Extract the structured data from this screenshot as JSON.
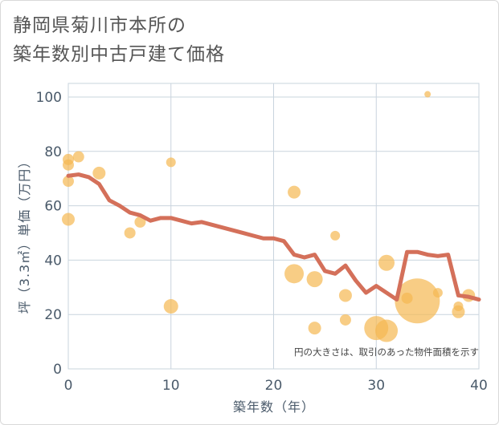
{
  "title": {
    "line1": "静岡県菊川市本所の",
    "line2": "築年数別中古戸建て価格"
  },
  "chart_data": {
    "type": "scatter",
    "xlabel": "築年数（年）",
    "ylabel": "坪（3.3㎡）単価（万円）",
    "xlim": [
      0,
      40
    ],
    "ylim": [
      0,
      105
    ],
    "x_ticks": [
      "0",
      "10",
      "20",
      "30",
      "40"
    ],
    "y_ticks": [
      "0",
      "20",
      "40",
      "60",
      "80",
      "100"
    ],
    "note": "円の大きさは、取引のあった物件面積を示す",
    "colors": {
      "bubble": "#f5b851",
      "line": "#d4705a",
      "grid": "#c9d4de"
    },
    "bubbles": [
      {
        "x": 0,
        "y": 77,
        "r": 7
      },
      {
        "x": 0,
        "y": 75,
        "r": 7
      },
      {
        "x": 0,
        "y": 69,
        "r": 7
      },
      {
        "x": 0,
        "y": 55,
        "r": 8
      },
      {
        "x": 1,
        "y": 78,
        "r": 7
      },
      {
        "x": 3,
        "y": 72,
        "r": 8
      },
      {
        "x": 6,
        "y": 50,
        "r": 7
      },
      {
        "x": 7,
        "y": 54,
        "r": 7
      },
      {
        "x": 10,
        "y": 76,
        "r": 6
      },
      {
        "x": 10,
        "y": 23,
        "r": 9
      },
      {
        "x": 22,
        "y": 65,
        "r": 8
      },
      {
        "x": 22,
        "y": 35,
        "r": 12
      },
      {
        "x": 24,
        "y": 33,
        "r": 10
      },
      {
        "x": 24,
        "y": 15,
        "r": 8
      },
      {
        "x": 26,
        "y": 49,
        "r": 6
      },
      {
        "x": 27,
        "y": 27,
        "r": 8
      },
      {
        "x": 27,
        "y": 18,
        "r": 7
      },
      {
        "x": 30,
        "y": 15,
        "r": 15
      },
      {
        "x": 31,
        "y": 14,
        "r": 14
      },
      {
        "x": 31,
        "y": 39,
        "r": 10
      },
      {
        "x": 33,
        "y": 26,
        "r": 7
      },
      {
        "x": 34,
        "y": 25,
        "r": 28
      },
      {
        "x": 35,
        "y": 101,
        "r": 4
      },
      {
        "x": 36,
        "y": 28,
        "r": 6
      },
      {
        "x": 38,
        "y": 21,
        "r": 8
      },
      {
        "x": 38,
        "y": 23,
        "r": 6
      },
      {
        "x": 39,
        "y": 27,
        "r": 8
      }
    ],
    "line": {
      "x": [
        0,
        1,
        2,
        3,
        4,
        5,
        6,
        7,
        8,
        9,
        10,
        11,
        12,
        13,
        14,
        15,
        16,
        17,
        18,
        19,
        20,
        21,
        22,
        23,
        24,
        25,
        26,
        27,
        28,
        29,
        30,
        31,
        32,
        33,
        34,
        35,
        36,
        37,
        38,
        39,
        40
      ],
      "y": [
        71,
        71.5,
        70.5,
        68,
        62,
        60,
        57.5,
        56.5,
        54.5,
        55.5,
        55.5,
        54.5,
        53.5,
        54,
        53,
        52,
        51,
        50,
        49,
        48,
        48,
        47,
        42,
        41,
        42,
        36,
        35,
        38,
        32.5,
        28,
        30.5,
        28,
        25.5,
        43,
        43,
        42,
        41.5,
        42,
        27,
        26.5,
        25.5
      ]
    }
  }
}
